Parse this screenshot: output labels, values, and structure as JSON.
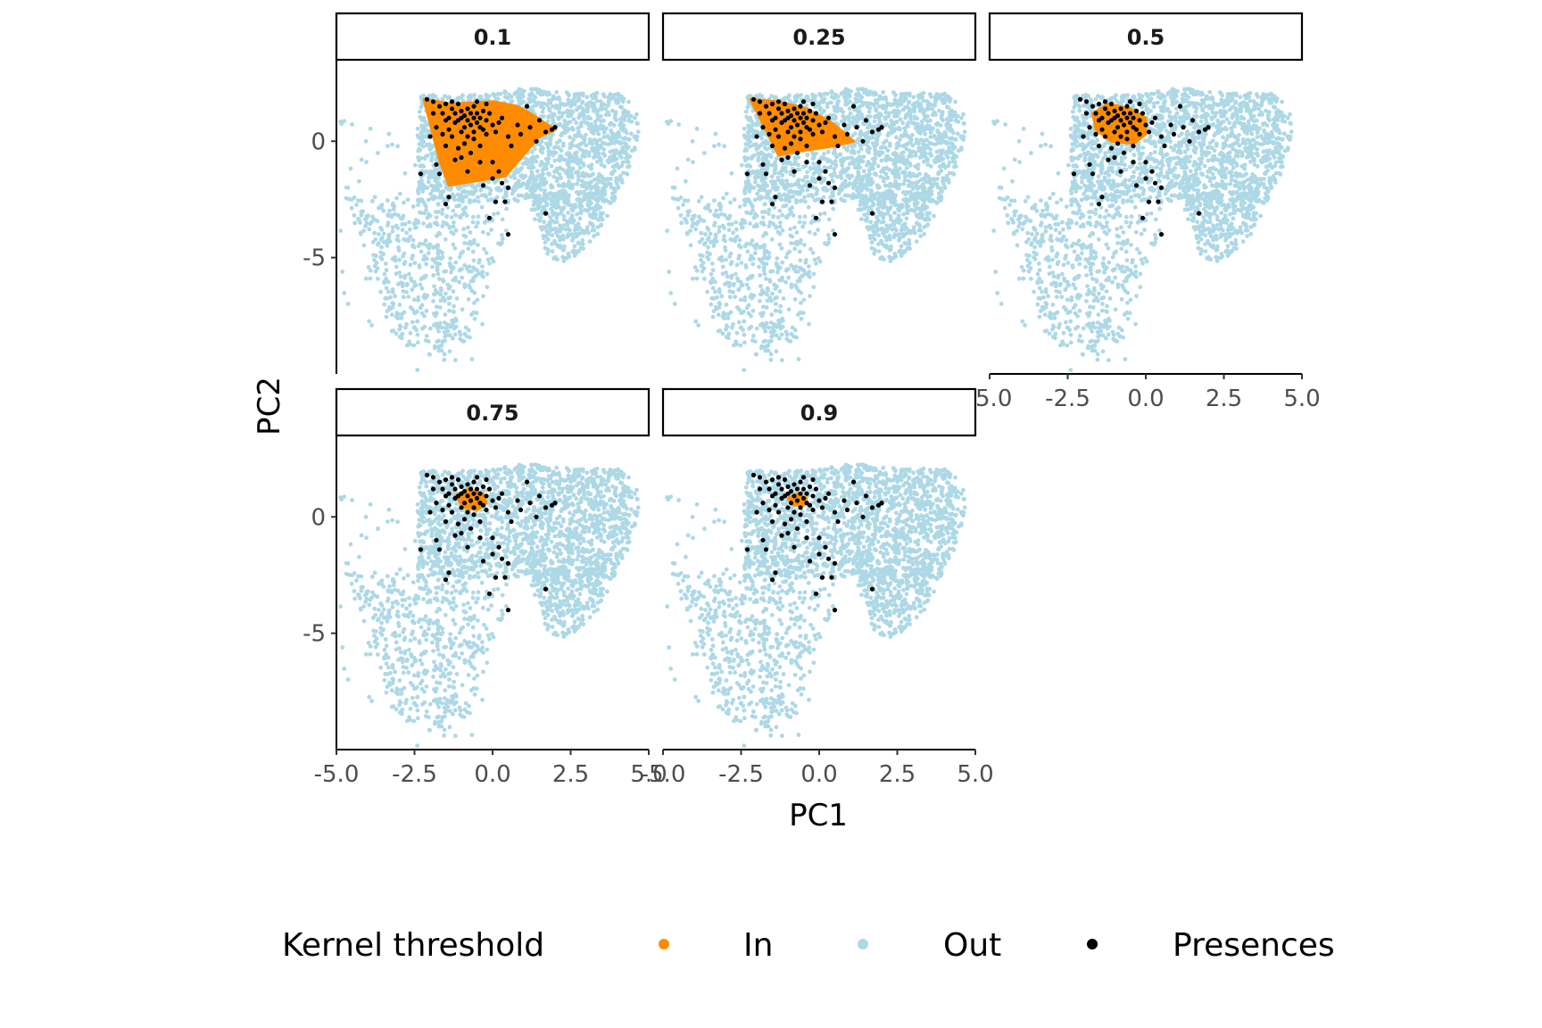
{
  "chart_data": {
    "type": "scatter",
    "facet_variable": "Kernel threshold",
    "xlabel": "PC1",
    "ylabel": "PC2",
    "xlim": [
      -5.0,
      5.0
    ],
    "ylim": [
      -10.0,
      3.5
    ],
    "x_ticks": [
      {
        "value": -5.0,
        "label": "-5.0"
      },
      {
        "value": -2.5,
        "label": "-2.5"
      },
      {
        "value": 0.0,
        "label": "0.0"
      },
      {
        "value": 2.5,
        "label": "2.5"
      },
      {
        "value": 5.0,
        "label": "5.0"
      }
    ],
    "y_ticks": [
      {
        "value": 0,
        "label": "0"
      },
      {
        "value": -5,
        "label": "-5"
      }
    ],
    "legend": {
      "title": "Kernel threshold",
      "position": "bottom",
      "items": [
        {
          "key": "in",
          "label": "In",
          "color": "#FF8C00"
        },
        {
          "key": "out",
          "label": "Out",
          "color": "#ADD8E6"
        },
        {
          "key": "presences",
          "label": "Presences",
          "color": "#000000"
        }
      ]
    },
    "background_cloud": {
      "series": "Out",
      "color": "#ADD8E6",
      "shape_outline": [
        [
          -2.2,
          2.0
        ],
        [
          -0.5,
          2.0
        ],
        [
          1.2,
          2.3
        ],
        [
          2.5,
          2.1
        ],
        [
          4.0,
          2.1
        ],
        [
          4.6,
          1.5
        ],
        [
          4.7,
          0.2
        ],
        [
          4.4,
          -1.2
        ],
        [
          3.9,
          -2.5
        ],
        [
          3.5,
          -3.8
        ],
        [
          2.8,
          -4.8
        ],
        [
          2.3,
          -5.4
        ],
        [
          1.7,
          -4.8
        ],
        [
          1.5,
          -3.6
        ],
        [
          1.0,
          -3.0
        ],
        [
          0.4,
          -4.0
        ],
        [
          -0.2,
          -6.5
        ],
        [
          -0.8,
          -8.5
        ],
        [
          -1.6,
          -9.3
        ],
        [
          -2.6,
          -9.0
        ],
        [
          -3.4,
          -8.0
        ],
        [
          -3.7,
          -5.8
        ],
        [
          -4.4,
          -3.6
        ],
        [
          -4.9,
          -1.6
        ],
        [
          -4.7,
          0.4
        ],
        [
          -3.6,
          1.2
        ]
      ],
      "density_weights": {
        "upper_body": 0.6,
        "lower_left_lobe": 0.25,
        "right_lobe": 0.15
      }
    },
    "presences": {
      "series": "Presences",
      "color": "#000000",
      "points": [
        [
          -2.1,
          1.8
        ],
        [
          -1.9,
          1.7
        ],
        [
          -1.7,
          1.5
        ],
        [
          -1.6,
          1.2
        ],
        [
          -1.5,
          1.6
        ],
        [
          -1.4,
          1.0
        ],
        [
          -1.3,
          1.4
        ],
        [
          -1.2,
          1.2
        ],
        [
          -1.2,
          0.8
        ],
        [
          -1.1,
          1.6
        ],
        [
          -1.0,
          1.0
        ],
        [
          -1.0,
          1.3
        ],
        [
          -0.9,
          0.6
        ],
        [
          -0.9,
          1.1
        ],
        [
          -0.8,
          1.4
        ],
        [
          -0.8,
          0.9
        ],
        [
          -0.7,
          1.2
        ],
        [
          -0.7,
          0.7
        ],
        [
          -0.6,
          1.0
        ],
        [
          -0.6,
          1.5
        ],
        [
          -0.5,
          0.8
        ],
        [
          -0.5,
          1.2
        ],
        [
          -0.4,
          0.6
        ],
        [
          -0.4,
          1.0
        ],
        [
          -0.3,
          1.3
        ],
        [
          -0.3,
          0.5
        ],
        [
          -0.2,
          0.9
        ],
        [
          -0.1,
          1.2
        ],
        [
          0.0,
          0.7
        ],
        [
          -1.8,
          0.6
        ],
        [
          -1.6,
          0.3
        ],
        [
          -1.3,
          0.2
        ],
        [
          -1.5,
          -0.2
        ],
        [
          -1.1,
          -0.3
        ],
        [
          -0.9,
          -0.1
        ],
        [
          -0.6,
          0.1
        ],
        [
          -0.4,
          -0.2
        ],
        [
          -0.2,
          0.3
        ],
        [
          0.1,
          0.4
        ],
        [
          0.3,
          1.0
        ],
        [
          0.5,
          0.2
        ],
        [
          0.6,
          -0.2
        ],
        [
          0.8,
          0.7
        ],
        [
          0.9,
          0.3
        ],
        [
          1.1,
          1.5
        ],
        [
          1.2,
          0.6
        ],
        [
          1.4,
          0.0
        ],
        [
          1.5,
          0.9
        ],
        [
          1.7,
          0.4
        ],
        [
          1.9,
          0.5
        ],
        [
          2.0,
          0.6
        ],
        [
          -1.8,
          -1.0
        ],
        [
          -1.7,
          -1.4
        ],
        [
          -1.2,
          -0.8
        ],
        [
          -0.8,
          -1.3
        ],
        [
          -0.4,
          -0.9
        ],
        [
          0.0,
          -0.9
        ],
        [
          0.2,
          -1.3
        ],
        [
          0.3,
          -1.8
        ],
        [
          0.5,
          -2.0
        ],
        [
          0.0,
          -1.6
        ],
        [
          -0.3,
          -1.9
        ],
        [
          -1.5,
          -2.7
        ],
        [
          -1.4,
          -2.4
        ],
        [
          0.1,
          -2.6
        ],
        [
          0.4,
          -2.6
        ],
        [
          -0.1,
          -3.3
        ],
        [
          0.5,
          -4.0
        ],
        [
          1.7,
          -3.1
        ],
        [
          -2.3,
          -1.4
        ],
        [
          -2.0,
          0.2
        ],
        [
          -1.4,
          0.5
        ],
        [
          -1.9,
          1.2
        ],
        [
          -1.0,
          0.4
        ],
        [
          -0.6,
          0.4
        ],
        [
          -1.1,
          0.9
        ],
        [
          -0.8,
          0.2
        ],
        [
          -1.3,
          1.7
        ],
        [
          -0.2,
          1.6
        ],
        [
          -0.5,
          1.7
        ],
        [
          0.2,
          0.8
        ],
        [
          -1.5,
          0.9
        ],
        [
          -0.7,
          -0.5
        ],
        [
          -1.0,
          -0.7
        ]
      ]
    },
    "panels": [
      {
        "label": "0.1",
        "in_polygon": [
          [
            -2.2,
            1.8
          ],
          [
            -1.3,
            1.6
          ],
          [
            0.0,
            1.7
          ],
          [
            0.8,
            1.5
          ],
          [
            1.2,
            1.2
          ],
          [
            2.0,
            0.5
          ],
          [
            1.5,
            0.2
          ],
          [
            0.4,
            -1.5
          ],
          [
            -1.4,
            -1.9
          ],
          [
            -1.7,
            -0.8
          ]
        ]
      },
      {
        "label": "0.25",
        "in_polygon": [
          [
            -2.2,
            1.8
          ],
          [
            -1.3,
            1.7
          ],
          [
            -0.4,
            1.4
          ],
          [
            0.4,
            0.8
          ],
          [
            1.1,
            0.0
          ],
          [
            0.5,
            -0.2
          ],
          [
            -0.5,
            -0.4
          ],
          [
            -1.3,
            -0.6
          ],
          [
            -1.6,
            0.2
          ]
        ]
      },
      {
        "label": "0.5",
        "in_polygon": [
          [
            -1.7,
            1.2
          ],
          [
            -1.2,
            1.6
          ],
          [
            -0.5,
            1.4
          ],
          [
            0.0,
            1.0
          ],
          [
            0.0,
            0.3
          ],
          [
            -0.4,
            -0.1
          ],
          [
            -1.1,
            0.0
          ],
          [
            -1.6,
            0.5
          ]
        ]
      },
      {
        "label": "0.75",
        "in_polygon": [
          [
            -1.2,
            0.9
          ],
          [
            -0.8,
            1.2
          ],
          [
            -0.3,
            1.0
          ],
          [
            -0.2,
            0.6
          ],
          [
            -0.5,
            0.3
          ],
          [
            -0.9,
            0.4
          ]
        ]
      },
      {
        "label": "0.9",
        "in_polygon": [
          [
            -1.0,
            0.8
          ],
          [
            -0.7,
            1.0
          ],
          [
            -0.4,
            0.8
          ],
          [
            -0.5,
            0.5
          ],
          [
            -0.8,
            0.5
          ]
        ]
      }
    ]
  }
}
